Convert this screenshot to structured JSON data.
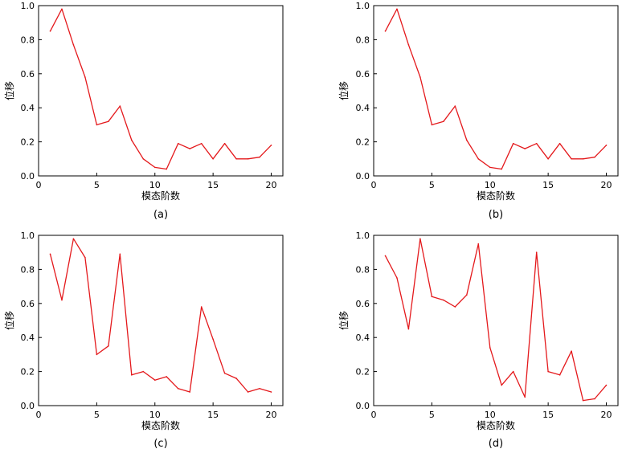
{
  "chart_data": [
    {
      "type": "line",
      "caption": "(a)",
      "xlabel": "模态阶数",
      "ylabel": "位移",
      "xlim": [
        0,
        21
      ],
      "ylim": [
        0,
        1.0
      ],
      "xticks": [
        "0",
        "5",
        "10",
        "15",
        "20"
      ],
      "yticks": [
        "0.0",
        "0.2",
        "0.4",
        "0.6",
        "0.8",
        "1.0"
      ],
      "color": "#e4191c",
      "x": [
        1,
        2,
        3,
        4,
        5,
        6,
        7,
        8,
        9,
        10,
        11,
        12,
        13,
        14,
        15,
        16,
        17,
        18,
        19,
        20
      ],
      "values": [
        0.85,
        0.98,
        0.77,
        0.58,
        0.3,
        0.32,
        0.41,
        0.21,
        0.1,
        0.05,
        0.04,
        0.19,
        0.16,
        0.19,
        0.1,
        0.19,
        0.1,
        0.1,
        0.11,
        0.18
      ]
    },
    {
      "type": "line",
      "caption": "(b)",
      "xlabel": "模态阶数",
      "ylabel": "位移",
      "xlim": [
        0,
        21
      ],
      "ylim": [
        0,
        1.0
      ],
      "xticks": [
        "0",
        "5",
        "10",
        "15",
        "20"
      ],
      "yticks": [
        "0.0",
        "0.2",
        "0.4",
        "0.6",
        "0.8",
        "1.0"
      ],
      "color": "#e4191c",
      "x": [
        1,
        2,
        3,
        4,
        5,
        6,
        7,
        8,
        9,
        10,
        11,
        12,
        13,
        14,
        15,
        16,
        17,
        18,
        19,
        20
      ],
      "values": [
        0.85,
        0.98,
        0.77,
        0.58,
        0.3,
        0.32,
        0.41,
        0.21,
        0.1,
        0.05,
        0.04,
        0.19,
        0.16,
        0.19,
        0.1,
        0.19,
        0.1,
        0.1,
        0.11,
        0.18
      ]
    },
    {
      "type": "line",
      "caption": "(c)",
      "xlabel": "模态阶数",
      "ylabel": "位移",
      "xlim": [
        0,
        21
      ],
      "ylim": [
        0,
        1.0
      ],
      "xticks": [
        "0",
        "5",
        "10",
        "15",
        "20"
      ],
      "yticks": [
        "0.0",
        "0.2",
        "0.4",
        "0.6",
        "0.8",
        "1.0"
      ],
      "color": "#e4191c",
      "x": [
        1,
        2,
        3,
        4,
        5,
        6,
        7,
        8,
        9,
        10,
        11,
        12,
        13,
        14,
        15,
        16,
        17,
        18,
        19,
        20
      ],
      "values": [
        0.89,
        0.62,
        0.98,
        0.87,
        0.3,
        0.35,
        0.89,
        0.18,
        0.2,
        0.15,
        0.17,
        0.1,
        0.08,
        0.58,
        0.39,
        0.19,
        0.16,
        0.08,
        0.1,
        0.08
      ]
    },
    {
      "type": "line",
      "caption": "(d)",
      "xlabel": "模态阶数",
      "ylabel": "位移",
      "xlim": [
        0,
        21
      ],
      "ylim": [
        0,
        1.0
      ],
      "xticks": [
        "0",
        "5",
        "10",
        "15",
        "20"
      ],
      "yticks": [
        "0.0",
        "0.2",
        "0.4",
        "0.6",
        "0.8",
        "1.0"
      ],
      "color": "#e4191c",
      "x": [
        1,
        2,
        3,
        4,
        5,
        6,
        7,
        8,
        9,
        10,
        11,
        12,
        13,
        14,
        15,
        16,
        17,
        18,
        19,
        20
      ],
      "values": [
        0.88,
        0.75,
        0.45,
        0.98,
        0.64,
        0.62,
        0.58,
        0.65,
        0.95,
        0.34,
        0.12,
        0.2,
        0.05,
        0.9,
        0.2,
        0.18,
        0.32,
        0.03,
        0.04,
        0.12
      ]
    }
  ]
}
